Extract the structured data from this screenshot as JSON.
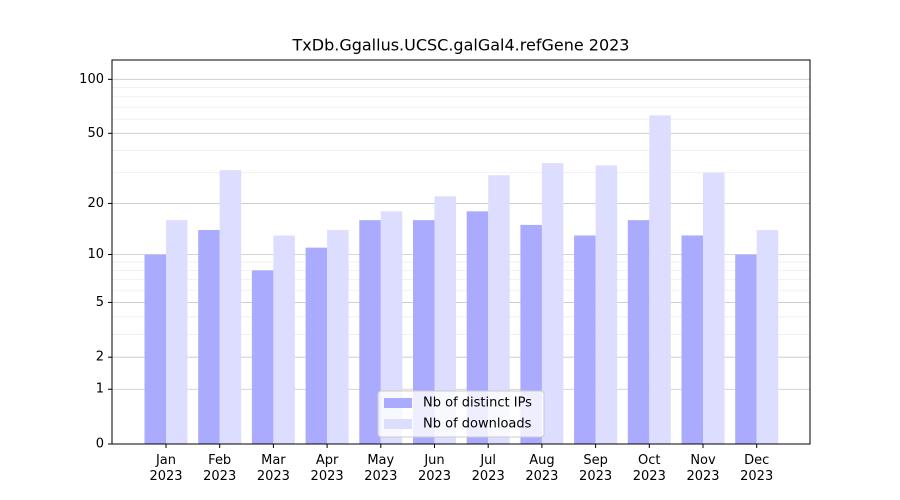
{
  "chart_data": {
    "type": "bar",
    "title": "TxDb.Ggallus.UCSC.galGal4.refGene 2023",
    "categories": [
      "Jan\n2023",
      "Feb\n2023",
      "Mar\n2023",
      "Apr\n2023",
      "May\n2023",
      "Jun\n2023",
      "Jul\n2023",
      "Aug\n2023",
      "Sep\n2023",
      "Oct\n2023",
      "Nov\n2023",
      "Dec\n2023"
    ],
    "series": [
      {
        "name": "Nb of distinct IPs",
        "color": "#aaaaff",
        "values": [
          10,
          14,
          8,
          11,
          16,
          16,
          18,
          15,
          13,
          16,
          13,
          10
        ]
      },
      {
        "name": "Nb of downloads",
        "color": "#ddddff",
        "values": [
          16,
          31,
          13,
          14,
          18,
          22,
          29,
          34,
          33,
          63,
          30,
          14
        ]
      }
    ],
    "yscale": "log1p",
    "ylim": [
      0,
      128
    ],
    "yticks": [
      0,
      1,
      2,
      5,
      10,
      20,
      50,
      100
    ],
    "yminorticks": [
      3,
      4,
      6,
      7,
      8,
      9,
      30,
      40,
      60,
      70,
      80,
      90
    ],
    "grid": true,
    "legend": "lower center"
  }
}
